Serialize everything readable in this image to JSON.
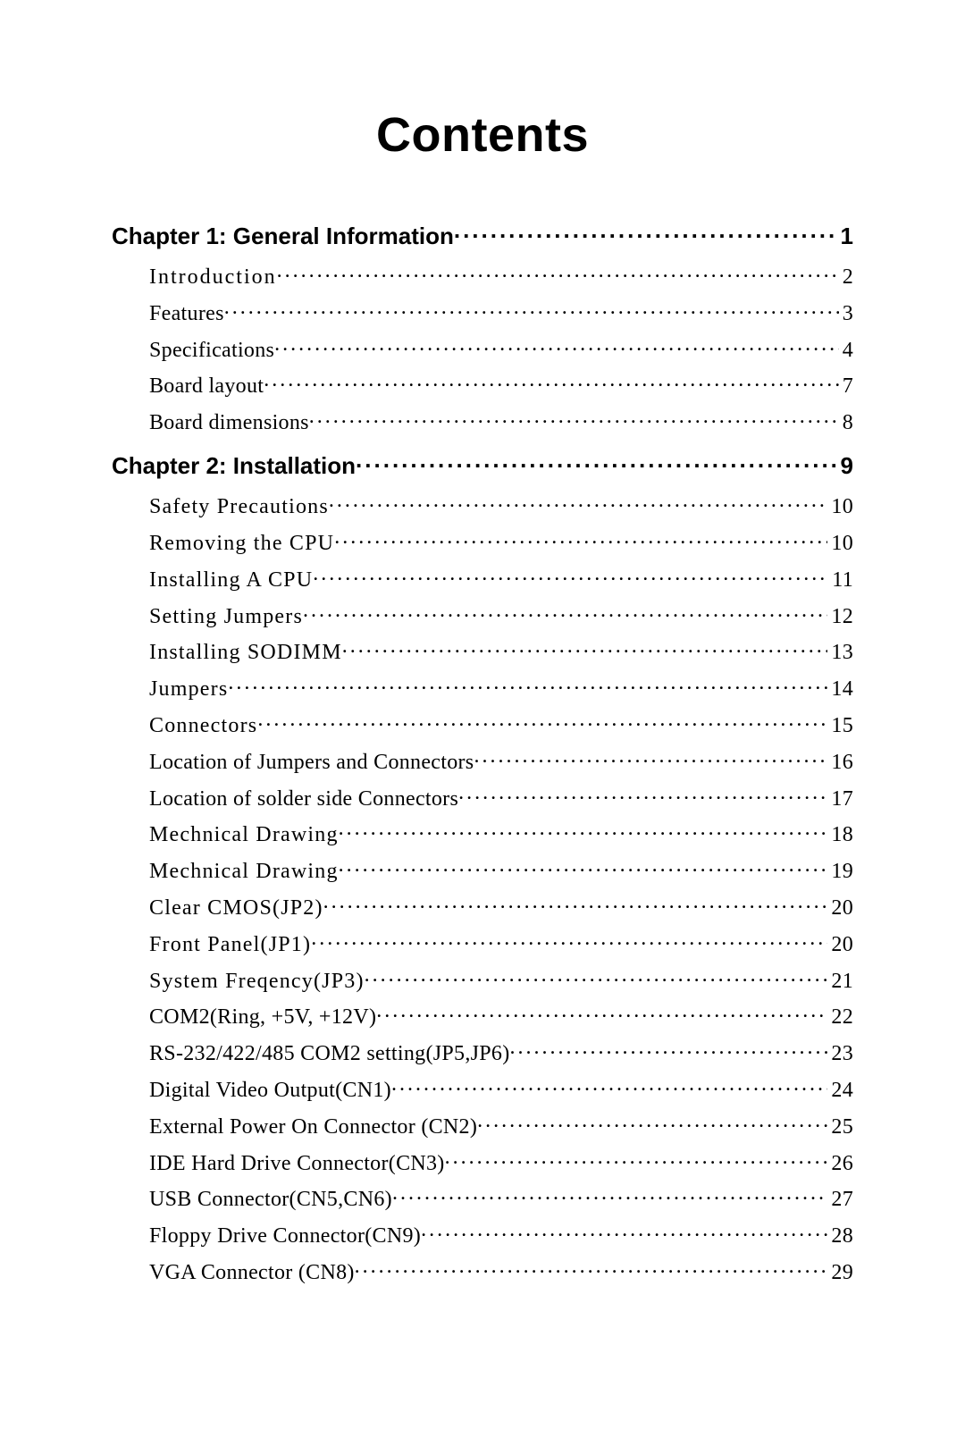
{
  "title": "Contents",
  "chapters": [
    {
      "label": "Chapter 1: General Information",
      "page": "1",
      "items": [
        {
          "label": "Introduction",
          "page": "2",
          "cls": "ls2"
        },
        {
          "label": "Features",
          "page": "3"
        },
        {
          "label": "Specifications ",
          "page": "4"
        },
        {
          "label": "Board layout ",
          "page": "7"
        },
        {
          "label": "Board dimensions ",
          "page": "8"
        }
      ]
    },
    {
      "label": "Chapter 2: Installation ",
      "page": "9",
      "items": [
        {
          "label": "Safety Precautions",
          "page": "10",
          "cls": "ls1"
        },
        {
          "label": "Removing the CPU",
          "page": "10",
          "cls": "ls1"
        },
        {
          "label": "Installing A CPU ",
          "page": "11",
          "cls": "ls1"
        },
        {
          "label": "Setting  Jumpers",
          "page": "12",
          "cls": "ls1"
        },
        {
          "label": "Installing SODIMM",
          "page": "13",
          "cls": "ls1"
        },
        {
          "label": "Jumpers ",
          "page": "14",
          "cls": "ls1"
        },
        {
          "label": "Connectors",
          "page": "15",
          "cls": "ls1"
        },
        {
          "label": "Location of Jumpers and Connectors",
          "page": "16"
        },
        {
          "label": "Location of solder side Connectors",
          "page": "17"
        },
        {
          "label": "Mechnical Drawing",
          "page": "18",
          "cls": "ls1"
        },
        {
          "label": "Mechnical Drawing",
          "page": "19",
          "cls": "ls1"
        },
        {
          "label": "Clear CMOS(JP2)",
          "page": "20",
          "cls": "ls1"
        },
        {
          "label": "Front  Panel(JP1)",
          "page": "20",
          "cls": "ls1"
        },
        {
          "label": "System Freqency(JP3)",
          "page": "21",
          "cls": "ls1"
        },
        {
          "label": "COM2(Ring, +5V, +12V)",
          "page": "22"
        },
        {
          "label": "RS-232/422/485 COM2 setting(JP5,JP6)",
          "page": "23"
        },
        {
          "label": "Digital Video Output(CN1)",
          "page": "24"
        },
        {
          "label": "External Power On Connector (CN2)",
          "page": "25"
        },
        {
          "label": "IDE Hard Drive Connector(CN3)",
          "page": "26"
        },
        {
          "label": "USB Connector(CN5,CN6)",
          "page": "27"
        },
        {
          "label": "Floppy Drive Connector(CN9)",
          "page": "28"
        },
        {
          "label": "VGA Connector (CN8)",
          "page": "29"
        }
      ]
    }
  ]
}
